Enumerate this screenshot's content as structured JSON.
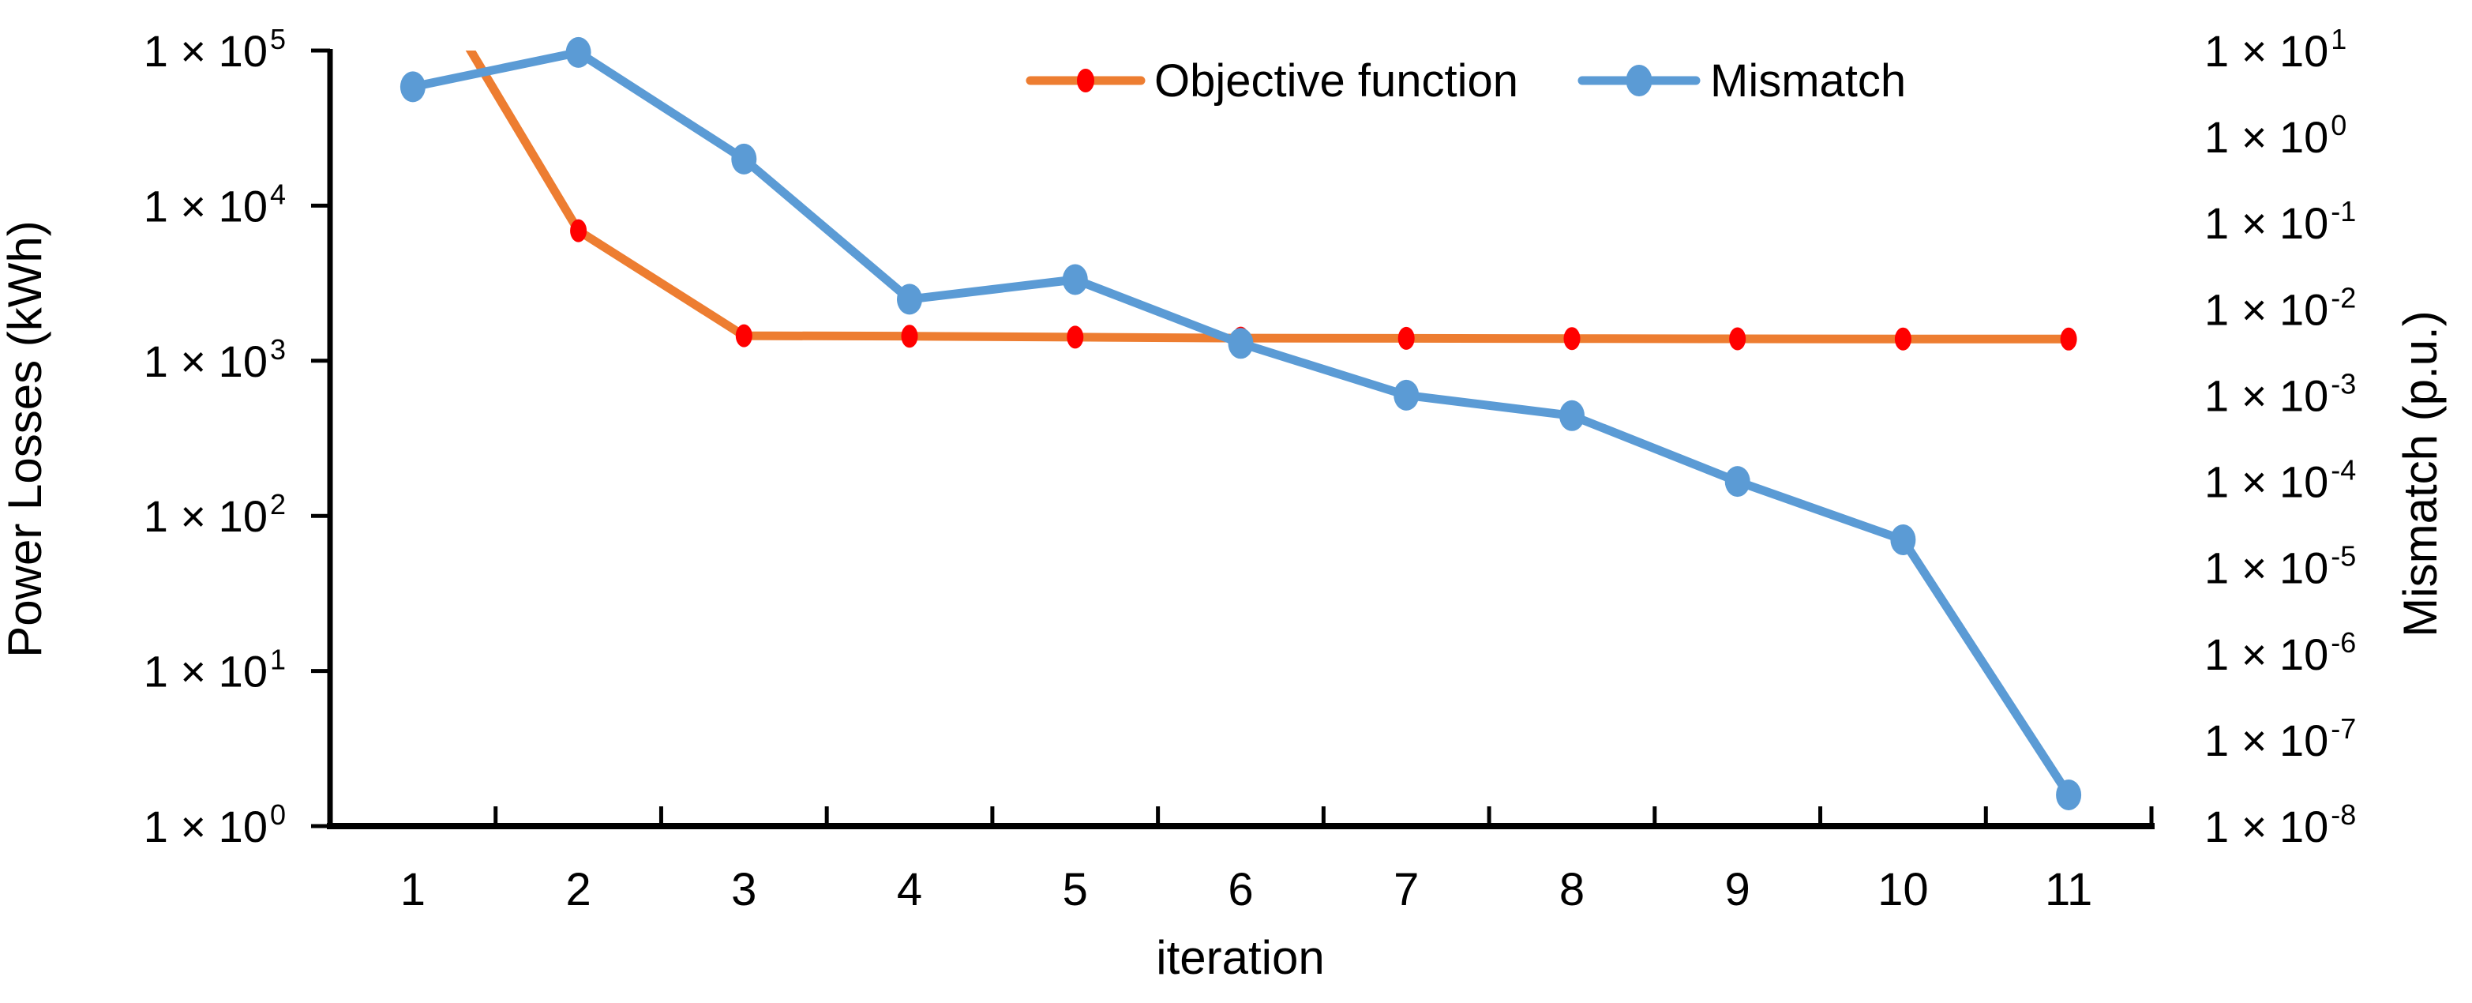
{
  "chart_data": {
    "type": "line",
    "title": "",
    "xlabel": "iteration",
    "categories": [
      "1",
      "2",
      "3",
      "4",
      "5",
      "6",
      "7",
      "8",
      "9",
      "10",
      "11"
    ],
    "left_axis": {
      "label": "Power Losses (kWh)",
      "scale": "log",
      "range": [
        1,
        100000
      ],
      "ticks": [
        {
          "base": "1 × 10",
          "exp": "5",
          "value": 100000
        },
        {
          "base": "1 × 10",
          "exp": "4",
          "value": 10000
        },
        {
          "base": "1 × 10",
          "exp": "3",
          "value": 1000
        },
        {
          "base": "1 × 10",
          "exp": "2",
          "value": 100
        },
        {
          "base": "1 × 10",
          "exp": "1",
          "value": 10
        },
        {
          "base": "1 × 10",
          "exp": "0",
          "value": 1
        }
      ]
    },
    "right_axis": {
      "label": "Mismatch (p.u.)",
      "scale": "log",
      "range": [
        1e-08,
        10
      ],
      "ticks": [
        {
          "base": "1 × 10",
          "exp": "1",
          "value": 10
        },
        {
          "base": "1 × 10",
          "exp": "0",
          "value": 1
        },
        {
          "base": "1 × 10",
          "exp": "-1",
          "value": 0.1
        },
        {
          "base": "1 × 10",
          "exp": "-2",
          "value": 0.01
        },
        {
          "base": "1 × 10",
          "exp": "-3",
          "value": 0.001
        },
        {
          "base": "1 × 10",
          "exp": "-4",
          "value": 0.0001
        },
        {
          "base": "1 × 10",
          "exp": "-5",
          "value": 1e-05
        },
        {
          "base": "1 × 10",
          "exp": "-6",
          "value": 1e-06
        },
        {
          "base": "1 × 10",
          "exp": "-7",
          "value": 1e-07
        },
        {
          "base": "1 × 10",
          "exp": "-8",
          "value": 1e-08
        }
      ]
    },
    "series": [
      {
        "name": "Objective function",
        "axis": "left",
        "line_color": "#ED7D31",
        "marker_color": "#FF0000",
        "values": [
          420000,
          6900,
          1450,
          1440,
          1420,
          1400,
          1395,
          1390,
          1385,
          1382,
          1380
        ]
      },
      {
        "name": "Mismatch",
        "axis": "right",
        "line_color": "#5B9BD5",
        "marker_color": "#5B9BD5",
        "values": [
          3.8,
          9.5,
          0.55,
          0.013,
          0.022,
          0.004,
          0.001,
          0.00058,
          0.0001,
          2.1e-05,
          2.3e-08
        ]
      }
    ],
    "legend_position": "top",
    "grid": "off"
  },
  "colors": {
    "background": "#FFFFFF",
    "axis": "#000000",
    "text": "#000000"
  }
}
